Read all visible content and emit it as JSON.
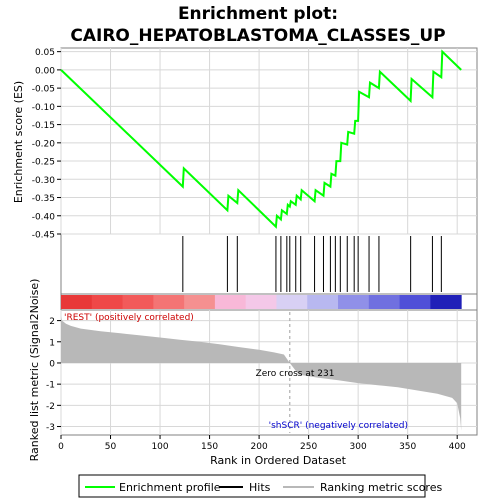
{
  "chart_data": {
    "type": "line",
    "title_line1": "Enrichment plot:",
    "title_line2": "CAIRO_HEPATOBLASTOMA_CLASSES_UP",
    "es_panel": {
      "ylabel": "Enrichment score (ES)",
      "ylim": [
        -0.45,
        0.06
      ],
      "yticks": [
        0.05,
        0.0,
        -0.05,
        -0.1,
        -0.15,
        -0.2,
        -0.25,
        -0.3,
        -0.35,
        -0.4,
        -0.45
      ],
      "ytick_labels": [
        "0.05",
        "0.00",
        "-0.05",
        "-0.10",
        "-0.15",
        "-0.20",
        "-0.25",
        "-0.30",
        "-0.35",
        "-0.40",
        "-0.45"
      ],
      "curve_x": [
        0,
        123,
        124,
        168,
        169,
        178,
        179,
        217,
        218,
        222,
        223,
        228,
        229,
        231,
        232,
        237,
        238,
        242,
        243,
        256,
        257,
        265,
        266,
        272,
        273,
        277,
        278,
        282,
        283,
        289,
        290,
        296,
        297,
        300,
        301,
        311,
        312,
        321,
        322,
        353,
        354,
        375,
        376,
        384,
        385,
        404
      ],
      "curve_y": [
        0.0,
        -0.32,
        -0.27,
        -0.385,
        -0.345,
        -0.365,
        -0.33,
        -0.43,
        -0.4,
        -0.41,
        -0.385,
        -0.395,
        -0.37,
        -0.375,
        -0.36,
        -0.37,
        -0.345,
        -0.355,
        -0.33,
        -0.36,
        -0.33,
        -0.345,
        -0.31,
        -0.32,
        -0.285,
        -0.29,
        -0.25,
        -0.25,
        -0.2,
        -0.205,
        -0.17,
        -0.175,
        -0.14,
        -0.14,
        -0.06,
        -0.075,
        -0.035,
        -0.05,
        -0.005,
        -0.085,
        -0.025,
        -0.075,
        -0.005,
        -0.02,
        0.05,
        0.0
      ]
    },
    "hits": [
      123,
      168,
      178,
      217,
      222,
      228,
      231,
      237,
      242,
      256,
      265,
      272,
      277,
      282,
      289,
      296,
      300,
      311,
      321,
      353,
      375,
      384
    ],
    "heatmap_colors": [
      "#e83838",
      "#ef4848",
      "#f25a5a",
      "#f47474",
      "#f59090",
      "#f8b8d8",
      "#f4c8e8",
      "#d8d0f4",
      "#b8b8f0",
      "#9090e8",
      "#7070e0",
      "#5050d8",
      "#2020b8"
    ],
    "rank_panel": {
      "ylabel": "Ranked list metric (Signal2Noise)",
      "ylim": [
        -3.4,
        2.5
      ],
      "yticks": [
        2,
        1,
        0,
        -1,
        -2,
        -3
      ],
      "ytick_labels": [
        "2",
        "1",
        "0",
        "-1",
        "-2",
        "-3"
      ],
      "metric_x": [
        0,
        1,
        5,
        10,
        20,
        40,
        60,
        80,
        100,
        120,
        140,
        160,
        180,
        200,
        215,
        225,
        231,
        240,
        260,
        280,
        300,
        320,
        340,
        360,
        380,
        395,
        400,
        403,
        404
      ],
      "metric_y": [
        2.2,
        2.0,
        1.85,
        1.75,
        1.62,
        1.5,
        1.4,
        1.3,
        1.2,
        1.1,
        1.0,
        0.88,
        0.75,
        0.62,
        0.5,
        0.4,
        0.0,
        -0.55,
        -0.7,
        -0.82,
        -0.95,
        -1.05,
        -1.15,
        -1.3,
        -1.45,
        -1.65,
        -1.9,
        -2.6,
        -3.2
      ],
      "pos_label": "'REST' (positively correlated)",
      "neg_label": "'shSCR' (negatively correlated)",
      "zero_cross_label": "Zero cross at 231",
      "zero_cross": 231
    },
    "xlabel": "Rank in Ordered Dataset",
    "xlim": [
      0,
      420
    ],
    "xticks": [
      0,
      50,
      100,
      150,
      200,
      250,
      300,
      350,
      400
    ],
    "xtick_labels": [
      "0",
      "50",
      "100",
      "150",
      "200",
      "250",
      "300",
      "350",
      "400"
    ],
    "legend": {
      "placement": "bottom",
      "items": [
        "Enrichment profile",
        "Hits",
        "Ranking metric scores"
      ]
    },
    "colors": {
      "es_line": "#00ff00",
      "hit_line": "#000000",
      "metric_fill": "#b8b8b8",
      "zero_cross_line": "#a0a0a0",
      "pos_text": "#cc0000",
      "neg_text": "#0000cc"
    }
  }
}
